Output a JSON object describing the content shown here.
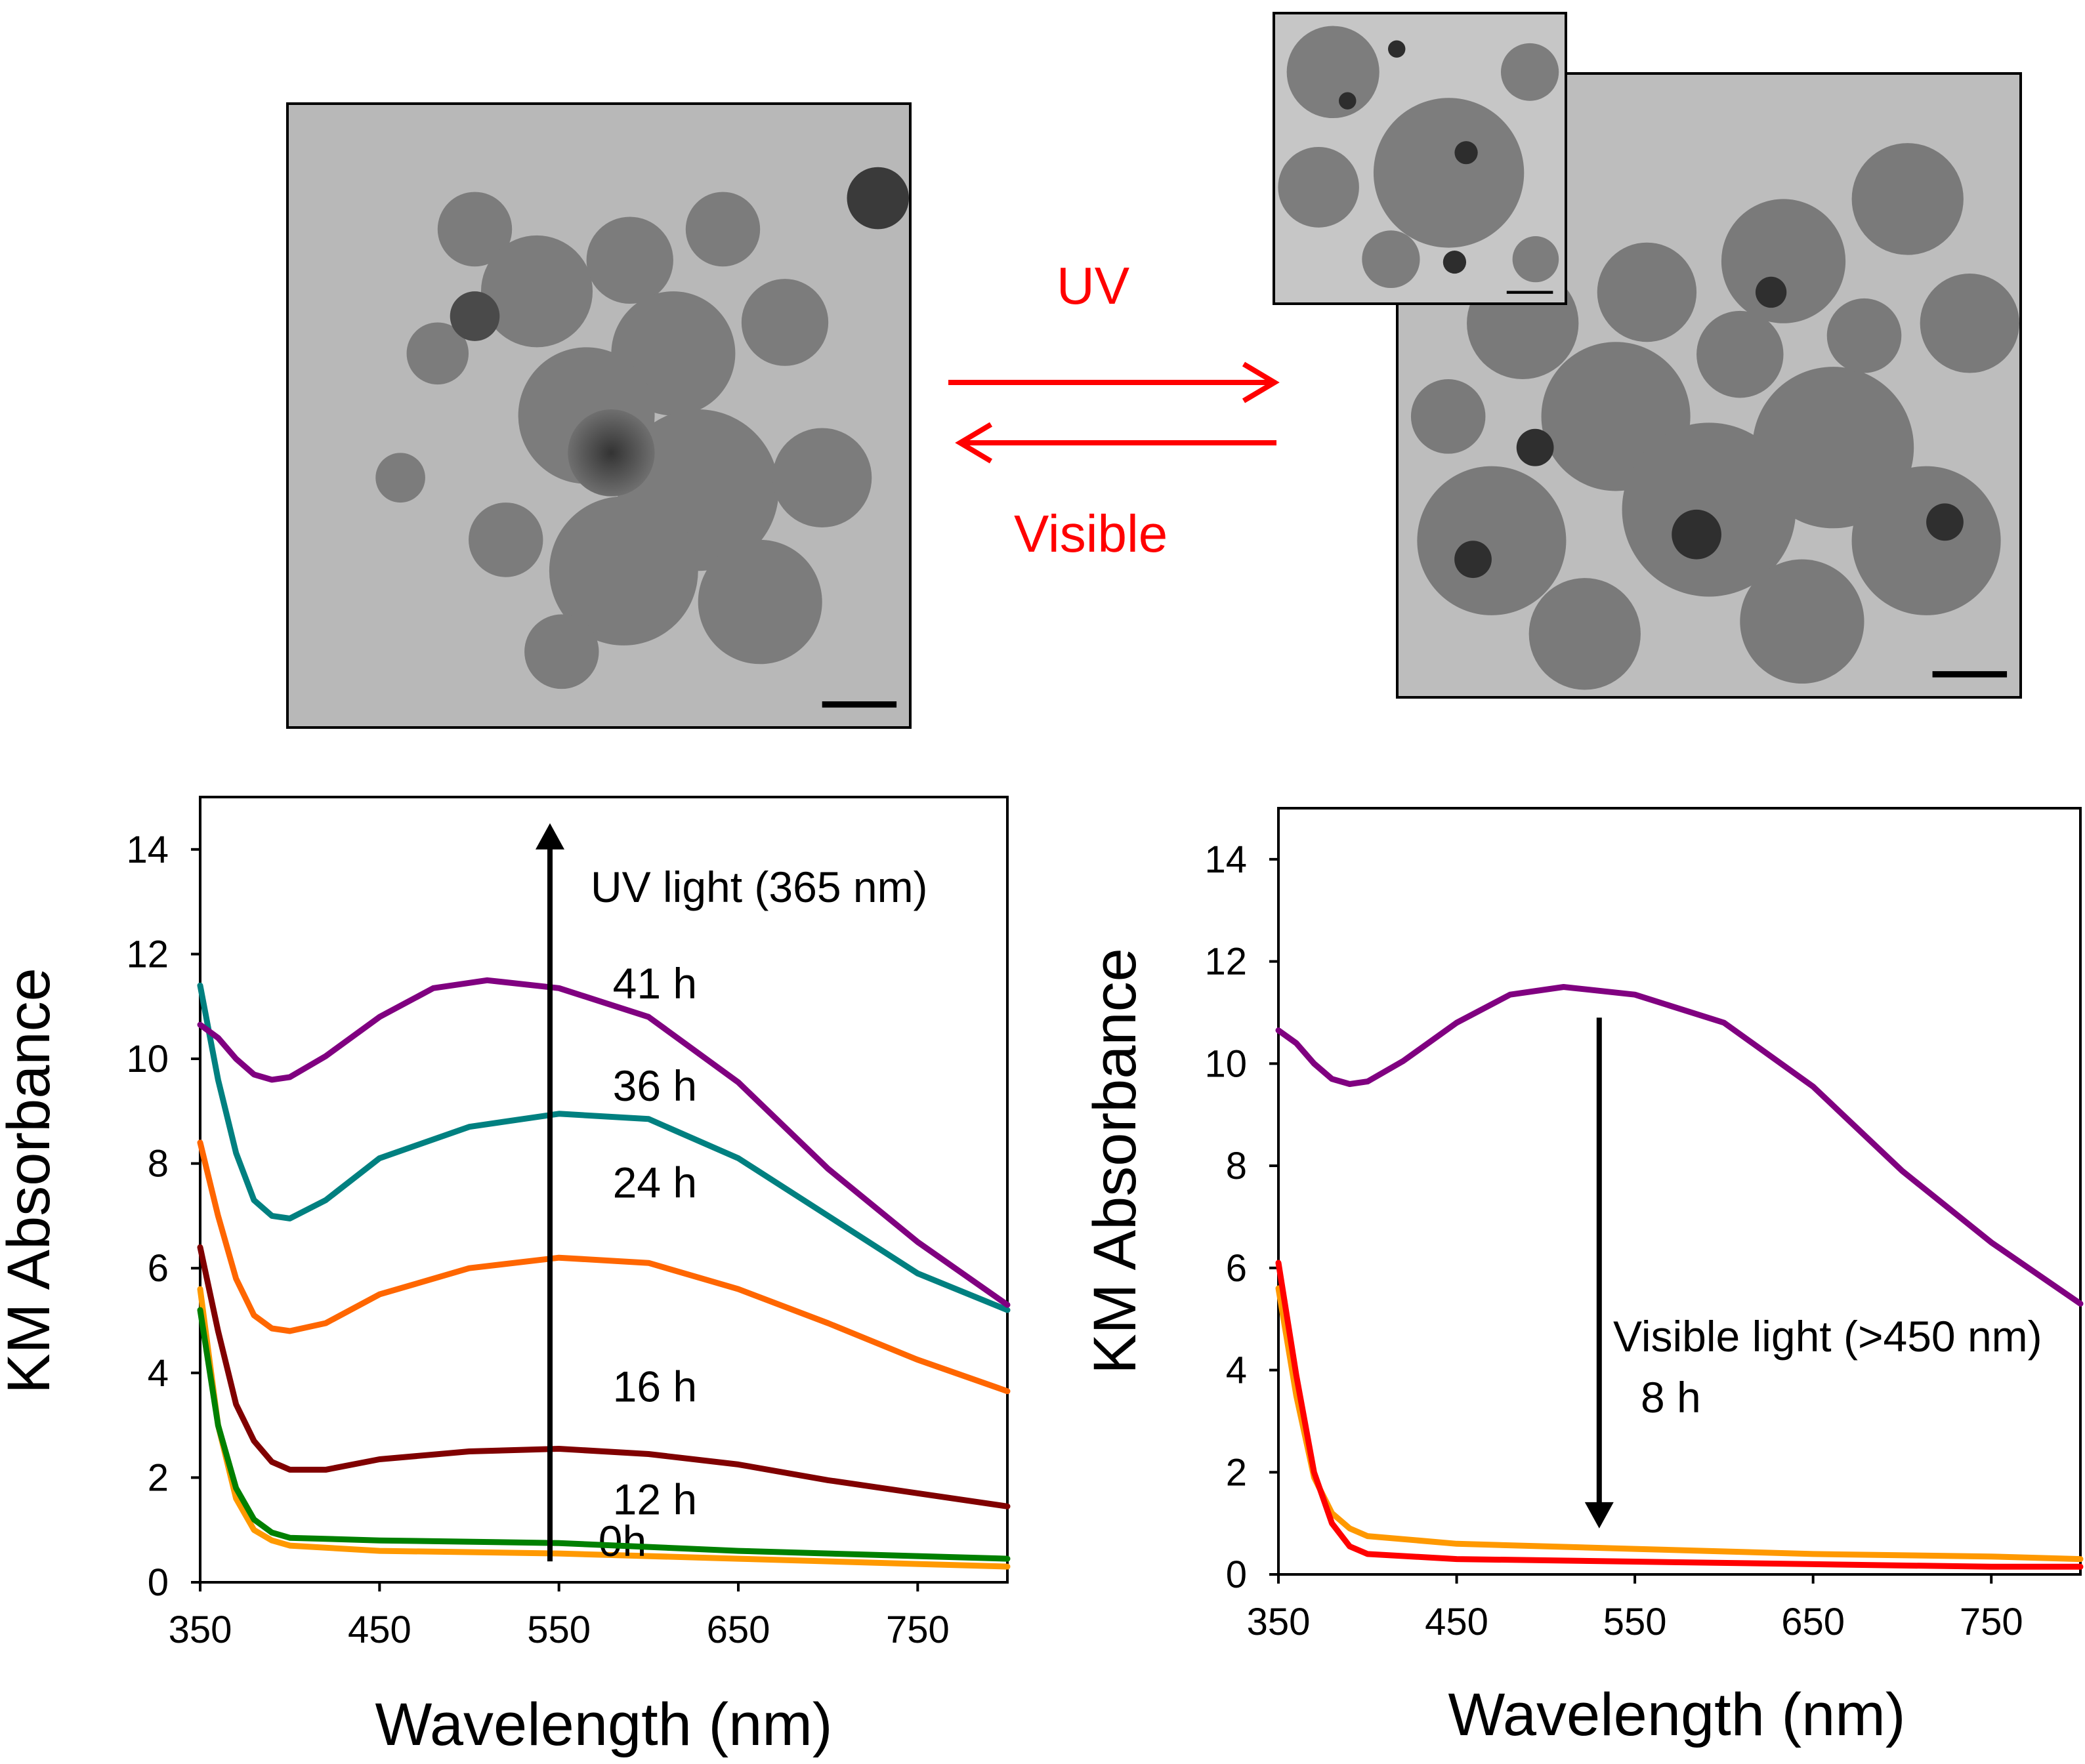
{
  "images": [
    {
      "name": "tem-before-uv",
      "description": "TEM micrograph of nanoparticle aggregates before UV irradiation"
    },
    {
      "name": "tem-after-uv",
      "description": "TEM micrograph of nanoparticle aggregates after UV irradiation"
    },
    {
      "name": "tem-after-uv-inset",
      "description": "Inset TEM micrograph (higher magnification)"
    }
  ],
  "reaction": {
    "forward_label": "UV",
    "reverse_label": "Visible",
    "color": "#ff0000"
  },
  "chart_data": [
    {
      "type": "line",
      "name": "uv-irradiation",
      "xlabel": "Wavelength (nm)",
      "ylabel": "KM Absorbance",
      "xlim": [
        350,
        800
      ],
      "ylim": [
        0,
        15
      ],
      "xticks": [
        350,
        450,
        550,
        650,
        750
      ],
      "yticks": [
        0,
        2,
        4,
        6,
        8,
        10,
        12,
        14
      ],
      "annotation": "UV light (365 nm)",
      "arrow": {
        "x": 545,
        "from_y": 0.4,
        "to_y": 14.5
      },
      "series": [
        {
          "name": "0h",
          "label": "0h",
          "color": "#ff9900",
          "label_x": 572,
          "label_y": 0.5,
          "points": [
            [
              350,
              5.6
            ],
            [
              360,
              3.0
            ],
            [
              370,
              1.6
            ],
            [
              380,
              1.0
            ],
            [
              390,
              0.8
            ],
            [
              400,
              0.7
            ],
            [
              450,
              0.6
            ],
            [
              550,
              0.55
            ],
            [
              650,
              0.45
            ],
            [
              750,
              0.35
            ],
            [
              800,
              0.3
            ]
          ]
        },
        {
          "name": "12 h",
          "label": "12 h",
          "color": "#008000",
          "label_x": 580,
          "label_y": 1.3,
          "points": [
            [
              350,
              5.2
            ],
            [
              360,
              3.0
            ],
            [
              370,
              1.8
            ],
            [
              380,
              1.2
            ],
            [
              390,
              0.95
            ],
            [
              400,
              0.85
            ],
            [
              450,
              0.8
            ],
            [
              550,
              0.75
            ],
            [
              650,
              0.6
            ],
            [
              750,
              0.5
            ],
            [
              800,
              0.45
            ]
          ]
        },
        {
          "name": "16 h",
          "label": "16 h",
          "color": "#800000",
          "label_x": 580,
          "label_y": 3.45,
          "points": [
            [
              350,
              6.4
            ],
            [
              360,
              4.8
            ],
            [
              370,
              3.4
            ],
            [
              380,
              2.7
            ],
            [
              390,
              2.3
            ],
            [
              400,
              2.15
            ],
            [
              420,
              2.15
            ],
            [
              450,
              2.35
            ],
            [
              500,
              2.5
            ],
            [
              550,
              2.55
            ],
            [
              600,
              2.45
            ],
            [
              650,
              2.25
            ],
            [
              700,
              1.95
            ],
            [
              750,
              1.7
            ],
            [
              800,
              1.45
            ]
          ]
        },
        {
          "name": "24 h",
          "label": "24 h",
          "color": "#ff6600",
          "label_x": 580,
          "label_y": 7.35,
          "points": [
            [
              350,
              8.4
            ],
            [
              360,
              7.0
            ],
            [
              370,
              5.8
            ],
            [
              380,
              5.1
            ],
            [
              390,
              4.85
            ],
            [
              400,
              4.8
            ],
            [
              420,
              4.95
            ],
            [
              450,
              5.5
            ],
            [
              500,
              6.0
            ],
            [
              550,
              6.2
            ],
            [
              600,
              6.1
            ],
            [
              650,
              5.6
            ],
            [
              700,
              4.95
            ],
            [
              750,
              4.25
            ],
            [
              800,
              3.65
            ]
          ]
        },
        {
          "name": "36 h",
          "label": "36 h",
          "color": "#008080",
          "label_x": 580,
          "label_y": 9.2,
          "points": [
            [
              350,
              11.4
            ],
            [
              360,
              9.6
            ],
            [
              370,
              8.2
            ],
            [
              380,
              7.3
            ],
            [
              390,
              7.0
            ],
            [
              400,
              6.95
            ],
            [
              420,
              7.3
            ],
            [
              450,
              8.1
            ],
            [
              500,
              8.7
            ],
            [
              550,
              8.95
            ],
            [
              600,
              8.85
            ],
            [
              650,
              8.1
            ],
            [
              700,
              7.0
            ],
            [
              750,
              5.9
            ],
            [
              800,
              5.2
            ]
          ]
        },
        {
          "name": "41 h",
          "label": "41 h",
          "color": "#800080",
          "label_x": 580,
          "label_y": 11.15,
          "points": [
            [
              350,
              10.65
            ],
            [
              360,
              10.4
            ],
            [
              370,
              10.0
            ],
            [
              380,
              9.7
            ],
            [
              390,
              9.6
            ],
            [
              400,
              9.65
            ],
            [
              420,
              10.05
            ],
            [
              450,
              10.8
            ],
            [
              480,
              11.35
            ],
            [
              510,
              11.5
            ],
            [
              550,
              11.35
            ],
            [
              600,
              10.8
            ],
            [
              650,
              9.55
            ],
            [
              700,
              7.9
            ],
            [
              750,
              6.5
            ],
            [
              800,
              5.3
            ]
          ]
        }
      ]
    },
    {
      "type": "line",
      "name": "visible-irradiation",
      "xlabel": "Wavelength (nm)",
      "ylabel": "KM Absorbance",
      "xlim": [
        350,
        800
      ],
      "ylim": [
        0,
        15
      ],
      "xticks": [
        350,
        450,
        550,
        650,
        750
      ],
      "yticks": [
        0,
        2,
        4,
        6,
        8,
        10,
        12,
        14
      ],
      "annotation_lines": [
        "Visible light (>450 nm)",
        "8 h"
      ],
      "arrow": {
        "x": 530,
        "from_y": 10.9,
        "to_y": 0.9
      },
      "series": [
        {
          "name": "41 h",
          "color": "#800080",
          "points": [
            [
              350,
              10.65
            ],
            [
              360,
              10.4
            ],
            [
              370,
              10.0
            ],
            [
              380,
              9.7
            ],
            [
              390,
              9.6
            ],
            [
              400,
              9.65
            ],
            [
              420,
              10.05
            ],
            [
              450,
              10.8
            ],
            [
              480,
              11.35
            ],
            [
              510,
              11.5
            ],
            [
              550,
              11.35
            ],
            [
              600,
              10.8
            ],
            [
              650,
              9.55
            ],
            [
              700,
              7.9
            ],
            [
              750,
              6.5
            ],
            [
              800,
              5.3
            ]
          ]
        },
        {
          "name": "0h",
          "color": "#ff9900",
          "points": [
            [
              350,
              5.6
            ],
            [
              360,
              3.5
            ],
            [
              370,
              1.9
            ],
            [
              380,
              1.2
            ],
            [
              390,
              0.9
            ],
            [
              400,
              0.75
            ],
            [
              450,
              0.6
            ],
            [
              550,
              0.5
            ],
            [
              650,
              0.4
            ],
            [
              750,
              0.35
            ],
            [
              800,
              0.3
            ]
          ]
        },
        {
          "name": "8 h",
          "color": "#ff0000",
          "points": [
            [
              350,
              6.1
            ],
            [
              360,
              3.9
            ],
            [
              370,
              2.0
            ],
            [
              380,
              1.0
            ],
            [
              390,
              0.55
            ],
            [
              400,
              0.4
            ],
            [
              450,
              0.3
            ],
            [
              550,
              0.25
            ],
            [
              650,
              0.2
            ],
            [
              750,
              0.15
            ],
            [
              800,
              0.15
            ]
          ]
        }
      ]
    }
  ]
}
